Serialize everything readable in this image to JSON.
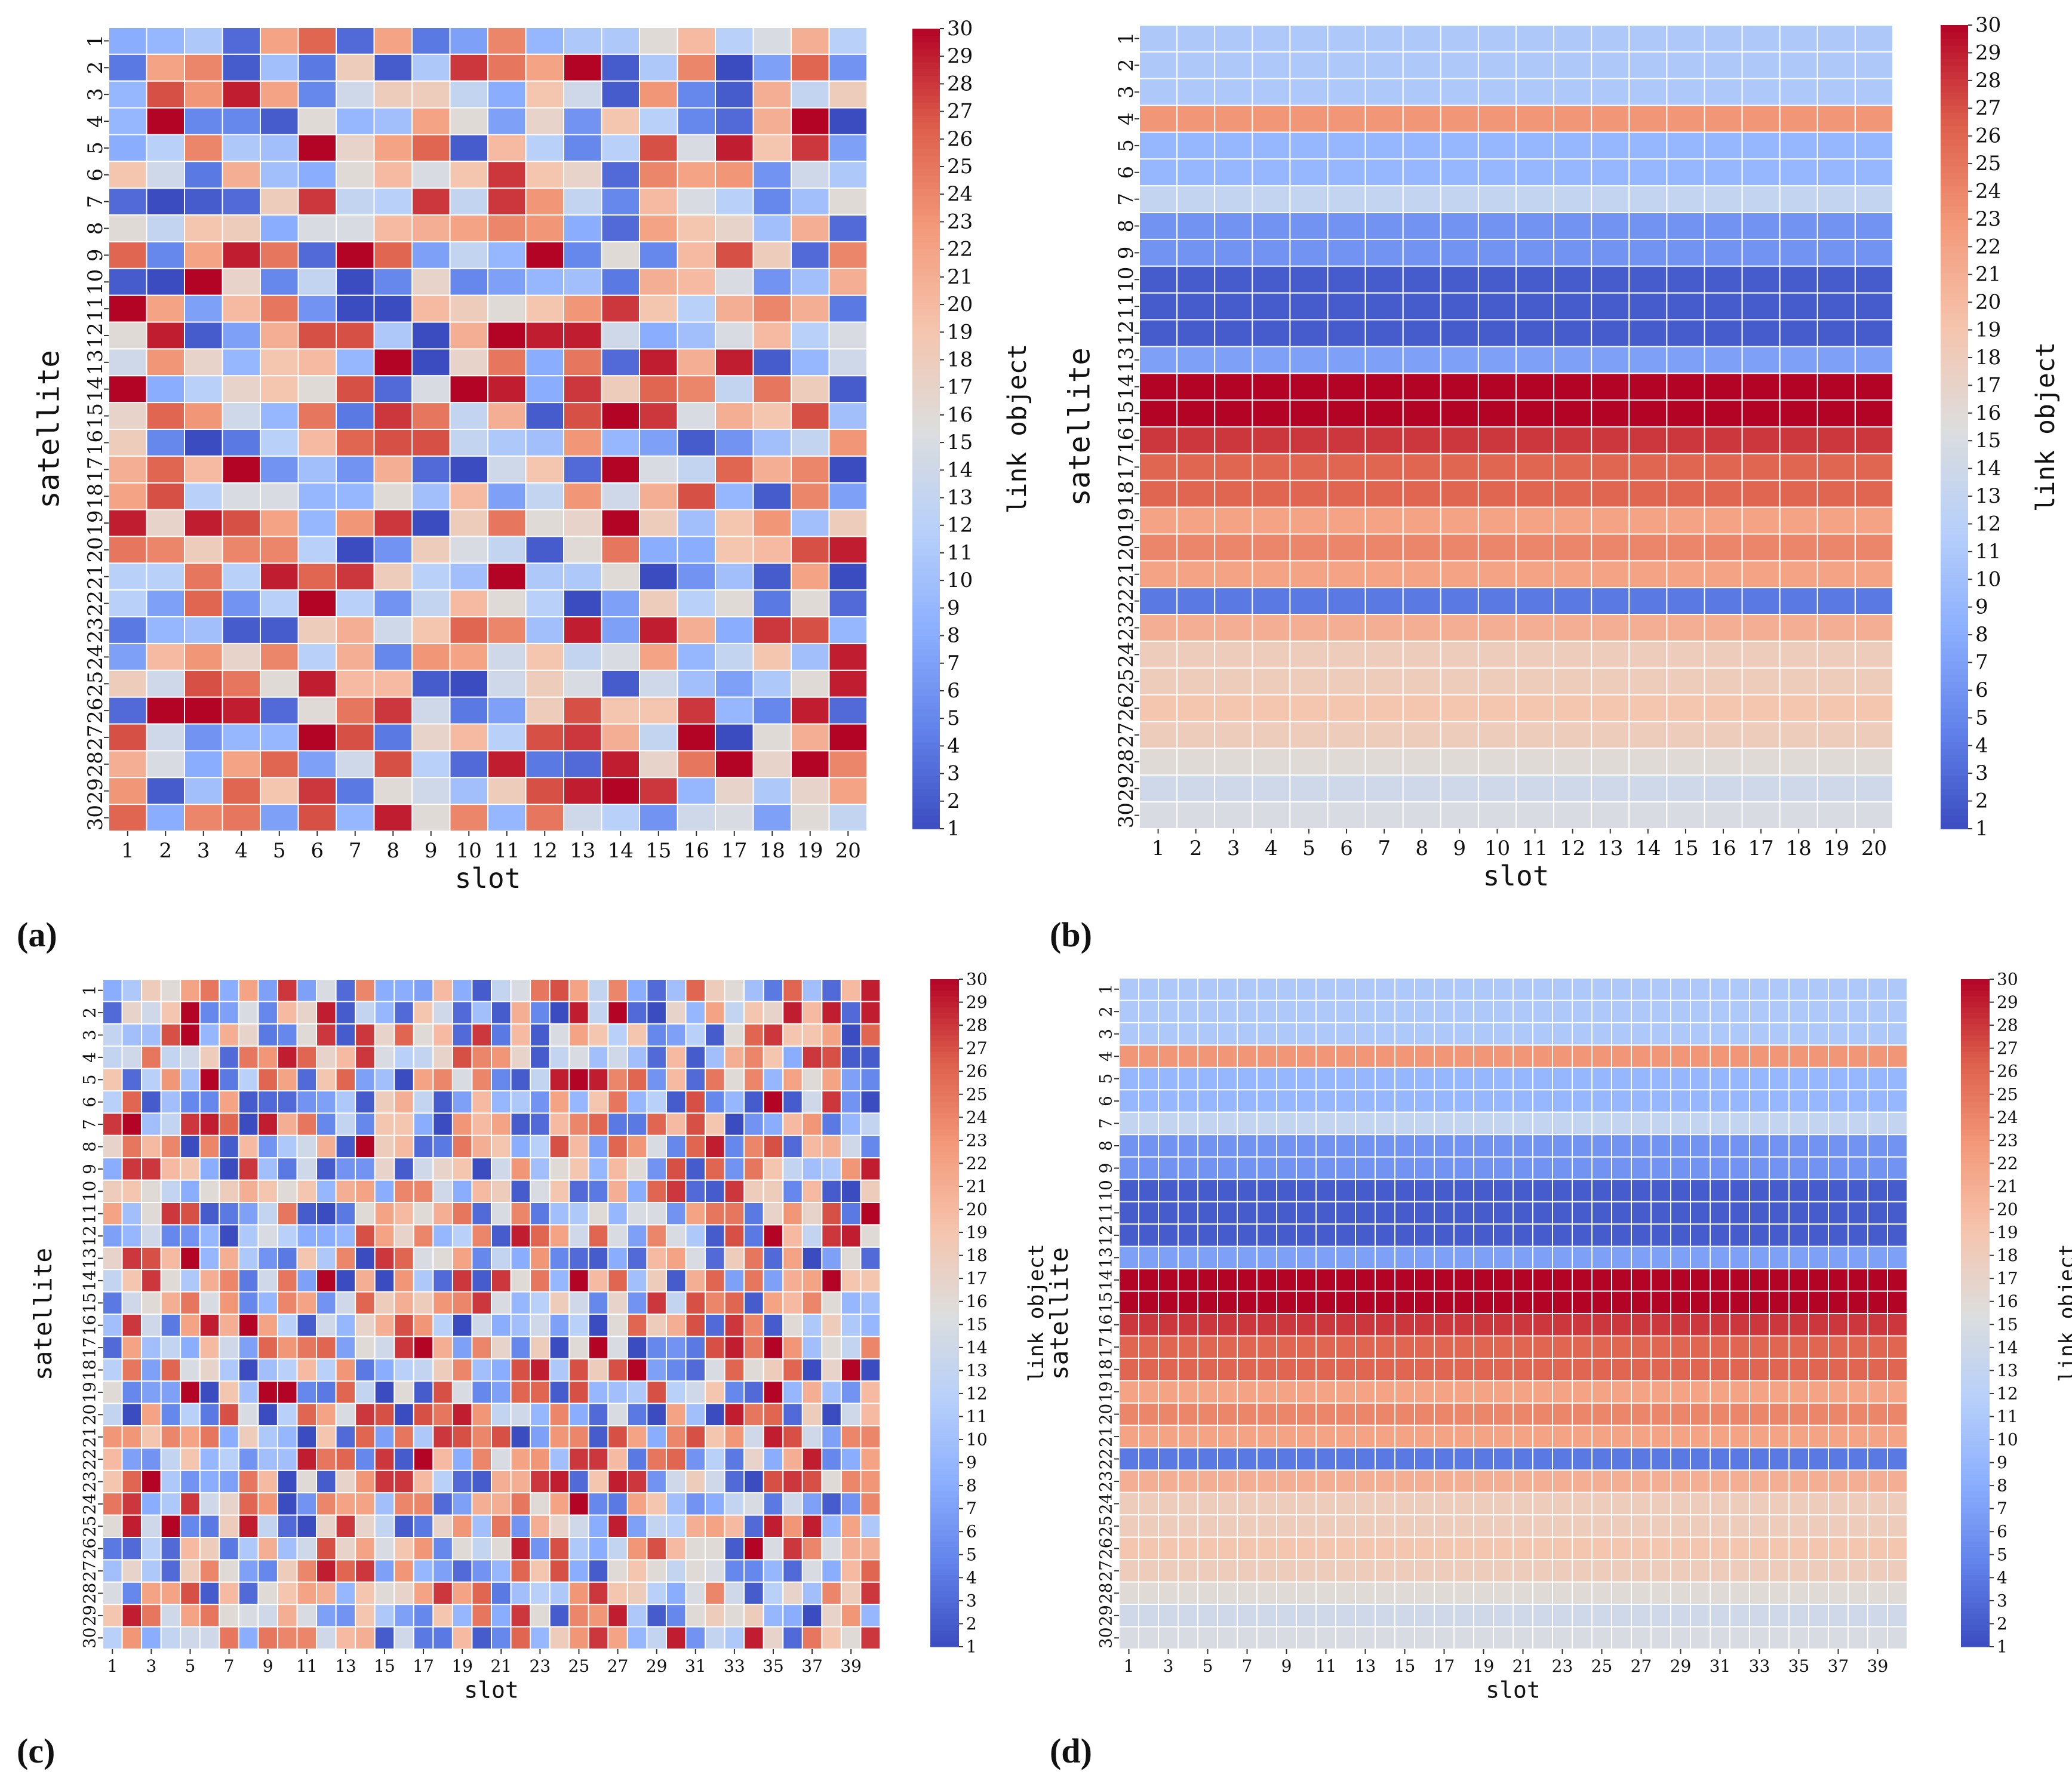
{
  "figure": {
    "panels": [
      "(a)",
      "(b)",
      "(c)",
      "(d)"
    ]
  },
  "chart_data": [
    {
      "type": "heatmap",
      "panel_label": "(a)",
      "pattern": "random",
      "xlabel": "slot",
      "ylabel": "satellite",
      "colorbar_label": "link object",
      "colormap": "coolwarm",
      "value_range": [
        1,
        30
      ],
      "n_slots": 20,
      "n_satellites": 30,
      "x_tick_step": 1,
      "seed": 11,
      "row_values": [],
      "colorbar_ticks": [
        1,
        2,
        3,
        4,
        5,
        6,
        7,
        8,
        9,
        10,
        11,
        12,
        13,
        14,
        15,
        16,
        17,
        18,
        19,
        20,
        21,
        22,
        23,
        24,
        25,
        26,
        27,
        28,
        29,
        30
      ]
    },
    {
      "type": "heatmap",
      "panel_label": "(b)",
      "pattern": "constant-per-row",
      "xlabel": "slot",
      "ylabel": "satellite",
      "colorbar_label": "link object",
      "colormap": "coolwarm",
      "value_range": [
        1,
        30
      ],
      "n_slots": 20,
      "n_satellites": 30,
      "x_tick_step": 1,
      "seed": 0,
      "row_values": [
        11,
        11,
        11,
        23,
        9,
        9,
        13,
        6,
        6,
        2,
        2,
        2,
        7,
        30,
        30,
        28,
        26,
        26,
        22,
        24,
        22,
        4,
        21,
        18,
        18,
        19,
        18,
        16,
        14,
        15
      ],
      "colorbar_ticks": [
        1,
        2,
        3,
        4,
        5,
        6,
        7,
        8,
        9,
        10,
        11,
        12,
        13,
        14,
        15,
        16,
        17,
        18,
        19,
        20,
        21,
        22,
        23,
        24,
        25,
        26,
        27,
        28,
        29,
        30
      ]
    },
    {
      "type": "heatmap",
      "panel_label": "(c)",
      "pattern": "random",
      "xlabel": "slot",
      "ylabel": "satellite",
      "colorbar_label": "link object",
      "colormap": "coolwarm",
      "value_range": [
        1,
        30
      ],
      "n_slots": 40,
      "n_satellites": 30,
      "x_tick_step": 2,
      "seed": 23,
      "row_values": [],
      "colorbar_ticks": [
        1,
        2,
        3,
        4,
        5,
        6,
        7,
        8,
        9,
        10,
        11,
        12,
        13,
        14,
        15,
        16,
        17,
        18,
        19,
        20,
        21,
        22,
        23,
        24,
        25,
        26,
        27,
        28,
        29,
        30
      ]
    },
    {
      "type": "heatmap",
      "panel_label": "(d)",
      "pattern": "constant-per-row",
      "xlabel": "slot",
      "ylabel": "satellite",
      "colorbar_label": "link object",
      "colormap": "coolwarm",
      "value_range": [
        1,
        30
      ],
      "n_slots": 40,
      "n_satellites": 30,
      "x_tick_step": 2,
      "seed": 0,
      "row_values": [
        11,
        11,
        11,
        23,
        9,
        9,
        13,
        6,
        6,
        2,
        2,
        2,
        7,
        30,
        30,
        28,
        26,
        26,
        22,
        24,
        22,
        4,
        21,
        18,
        18,
        19,
        18,
        16,
        14,
        15
      ],
      "colorbar_ticks": [
        1,
        2,
        3,
        4,
        5,
        6,
        7,
        8,
        9,
        10,
        11,
        12,
        13,
        14,
        15,
        16,
        17,
        18,
        19,
        20,
        21,
        22,
        23,
        24,
        25,
        26,
        27,
        28,
        29,
        30
      ]
    }
  ]
}
